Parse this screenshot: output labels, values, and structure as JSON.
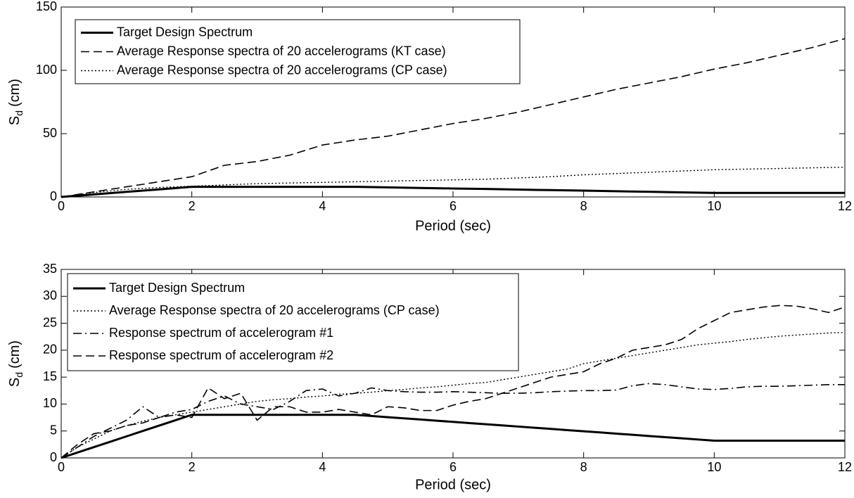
{
  "chart_data": [
    {
      "type": "line",
      "ylabel": "S",
      "ylabel_subscript": "d",
      "ylabel_unit": "(cm)",
      "xlabel": "Period (sec)",
      "xlim": [
        0,
        12
      ],
      "xticks": [
        0,
        2,
        4,
        6,
        8,
        10,
        12
      ],
      "ylim": [
        0,
        150
      ],
      "yticks": [
        0,
        50,
        100,
        150
      ],
      "grid": false,
      "legend": "upper left",
      "x": [
        0,
        0.5,
        1,
        1.5,
        2,
        2.5,
        3,
        3.5,
        4,
        4.5,
        5,
        5.5,
        6,
        6.5,
        7,
        7.5,
        8,
        8.5,
        9,
        9.5,
        10,
        10.5,
        11,
        11.5,
        12
      ],
      "series": [
        {
          "name": "Target Design Spectrum",
          "color": "#000000",
          "dash": "solid",
          "width": 3,
          "values": [
            0,
            2,
            4,
            6,
            8,
            8,
            8,
            8,
            8,
            8,
            7.6,
            7.1,
            6.7,
            6.3,
            5.8,
            5.4,
            5.0,
            4.5,
            4.1,
            3.6,
            3.2,
            3.2,
            3.2,
            3.2,
            3.2
          ]
        },
        {
          "name": "Average Response spectra of 20 accelerograms (KT case)",
          "color": "#000000",
          "dash": "dashed",
          "width": 1.6,
          "values": [
            0,
            4,
            8,
            12,
            16,
            25,
            28,
            33,
            41,
            45,
            48,
            53,
            58,
            62,
            67,
            73,
            79,
            85,
            90,
            95,
            101,
            106,
            112,
            118,
            125
          ]
        },
        {
          "name": "Average Response spectra of 20 accelerograms (CP case)",
          "color": "#000000",
          "dash": "dotted",
          "width": 1.4,
          "values": [
            0,
            3.5,
            6,
            7.5,
            8.5,
            9.5,
            10.5,
            11,
            11.5,
            12,
            12.5,
            13,
            13.5,
            14,
            15,
            16,
            17.5,
            18.5,
            19.5,
            20.5,
            21.5,
            22,
            22.5,
            23,
            23.5
          ]
        }
      ]
    },
    {
      "type": "line",
      "ylabel": "S",
      "ylabel_subscript": "d",
      "ylabel_unit": "(cm)",
      "xlabel": "Period (sec)",
      "xlim": [
        0,
        12
      ],
      "xticks": [
        0,
        2,
        4,
        6,
        8,
        10,
        12
      ],
      "ylim": [
        0,
        35
      ],
      "yticks": [
        0,
        5,
        10,
        15,
        20,
        25,
        30,
        35
      ],
      "grid": false,
      "legend": "upper left",
      "x": [
        0,
        0.25,
        0.5,
        0.75,
        1,
        1.25,
        1.5,
        1.75,
        2,
        2.25,
        2.5,
        2.75,
        3,
        3.25,
        3.5,
        3.75,
        4,
        4.25,
        4.5,
        4.75,
        5,
        5.25,
        5.5,
        5.75,
        6,
        6.25,
        6.5,
        6.75,
        7,
        7.25,
        7.5,
        7.75,
        8,
        8.25,
        8.5,
        8.75,
        9,
        9.25,
        9.5,
        9.75,
        10,
        10.25,
        10.5,
        10.75,
        11,
        11.25,
        11.5,
        11.75,
        12
      ],
      "series": [
        {
          "name": "Target Design Spectrum",
          "color": "#000000",
          "dash": "solid",
          "width": 3,
          "values": [
            0,
            1,
            2,
            3,
            4,
            5,
            6,
            7,
            8,
            8,
            8,
            8,
            8,
            8,
            8,
            8,
            8,
            8,
            8,
            7.78,
            7.56,
            7.35,
            7.13,
            6.91,
            6.69,
            6.47,
            6.25,
            6.04,
            5.82,
            5.6,
            5.38,
            5.16,
            4.95,
            4.73,
            4.51,
            4.29,
            4.07,
            3.85,
            3.64,
            3.42,
            3.2,
            3.2,
            3.2,
            3.2,
            3.2,
            3.2,
            3.2,
            3.2,
            3.2
          ]
        },
        {
          "name": "Average Response spectra of 20 accelerograms (CP case)",
          "color": "#000000",
          "dash": "dotted",
          "width": 1.4,
          "values": [
            0,
            2,
            3.5,
            5,
            6,
            6.8,
            7.5,
            8,
            8.5,
            9,
            9.5,
            10,
            10.5,
            10.8,
            11,
            11.3,
            11.5,
            11.8,
            12,
            12.2,
            12.5,
            12.7,
            13,
            13.2,
            13.5,
            13.8,
            14,
            14.5,
            15,
            15.5,
            16,
            16.5,
            17.5,
            18,
            18.5,
            19,
            19.5,
            20,
            20.5,
            21,
            21.3,
            21.6,
            22,
            22.3,
            22.6,
            22.8,
            23,
            23.2,
            23.3
          ]
        },
        {
          "name": "Response spectrum of accelerogram #1",
          "color": "#000000",
          "dash": "dashdot",
          "width": 1.6,
          "values": [
            0,
            2,
            4,
            5.5,
            7,
            9.5,
            7.5,
            8.5,
            9,
            10.5,
            11.5,
            10,
            9.5,
            9,
            10.5,
            12.5,
            12.8,
            11.5,
            12,
            13,
            12.5,
            12.3,
            12.2,
            12.2,
            12.3,
            12.2,
            12.1,
            12,
            12,
            12.1,
            12.3,
            12.4,
            12.5,
            12.5,
            12.6,
            13.4,
            13.8,
            13.6,
            13.2,
            12.8,
            12.7,
            12.9,
            13.2,
            13.3,
            13.3,
            13.4,
            13.5,
            13.6,
            13.6
          ]
        },
        {
          "name": "Response spectrum of accelerogram #2",
          "color": "#000000",
          "dash": "dashed",
          "width": 1.6,
          "values": [
            0,
            2.5,
            4.5,
            5,
            6,
            6.5,
            7.5,
            8,
            7.5,
            13,
            11,
            12,
            7,
            9.5,
            9.5,
            8.5,
            8.5,
            9,
            8.5,
            8,
            9.5,
            9.3,
            8.8,
            8.8,
            9.8,
            10.5,
            11,
            12,
            13,
            14,
            15,
            15.5,
            16,
            17.5,
            18.5,
            20,
            20.5,
            21,
            22,
            24,
            25.5,
            27,
            27.5,
            28,
            28.3,
            28.2,
            27.7,
            27,
            28
          ]
        }
      ]
    }
  ]
}
